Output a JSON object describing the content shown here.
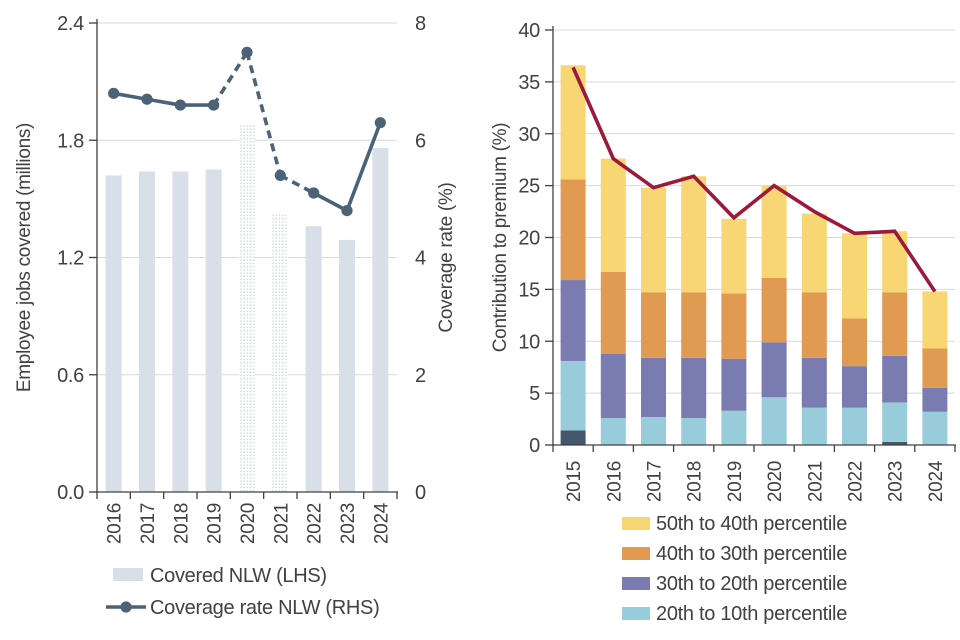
{
  "page": {
    "background": "#ffffff",
    "text_color": "#414042",
    "grid_color": "#d9d9d9",
    "axis_color": "#414042"
  },
  "chart_data": [
    {
      "id": "left-chart",
      "type": "bar",
      "categories": [
        "2016",
        "2017",
        "2018",
        "2019",
        "2020",
        "2021",
        "2022",
        "2023",
        "2024"
      ],
      "ylabel_left": "Employee jobs covered (millions)",
      "ylabel_right": "Coverage rate (%)",
      "ylim_left": [
        0,
        2.4
      ],
      "yticks_left": [
        "0.0",
        "0.6",
        "1.2",
        "1.8",
        "2.4"
      ],
      "ylim_right": [
        0,
        8
      ],
      "yticks_right": [
        "0",
        "2",
        "4",
        "6",
        "8"
      ],
      "grid": true,
      "bar_series": {
        "name": "Covered NLW (LHS)",
        "axis": "left",
        "color": "#d9dfe8",
        "values": [
          1.62,
          1.64,
          1.64,
          1.65,
          1.88,
          1.42,
          1.36,
          1.29,
          1.76
        ],
        "dotted_pattern_years": [
          "2020",
          "2021"
        ]
      },
      "line_series": {
        "name": "Coverage rate NLW (RHS)",
        "axis": "right",
        "color": "#4b6277",
        "values": [
          6.8,
          6.7,
          6.6,
          6.6,
          7.5,
          5.4,
          5.1,
          4.8,
          6.3
        ],
        "marker": "circle",
        "dashed_between_years": [
          [
            "2019",
            "2020"
          ],
          [
            "2020",
            "2021"
          ],
          [
            "2021",
            "2022"
          ]
        ]
      },
      "legend": [
        {
          "label": "Covered NLW (LHS)",
          "marker": "bar",
          "color": "#d9dfe8"
        },
        {
          "label": "Coverage rate NLW (RHS)",
          "marker": "line",
          "color": "#4b6277"
        }
      ],
      "legend_position": "bottom"
    },
    {
      "id": "right-chart",
      "type": "stacked-bar",
      "categories": [
        "2015",
        "2016",
        "2017",
        "2018",
        "2019",
        "2020",
        "2021",
        "2022",
        "2023",
        "2024"
      ],
      "ylabel": "Contribution to premium (%)",
      "ylim": [
        0,
        40
      ],
      "yticks": [
        "0",
        "5",
        "10",
        "15",
        "20",
        "25",
        "30",
        "35",
        "40"
      ],
      "grid": true,
      "series": [
        {
          "color": "#44576b",
          "in_legend": false,
          "values": [
            1.4,
            0,
            0,
            0,
            0,
            0,
            0,
            0,
            0.3,
            0
          ]
        },
        {
          "name": "20th to 10th percentile",
          "color": "#98ccda",
          "in_legend": true,
          "values": [
            6.7,
            2.6,
            2.7,
            2.6,
            3.3,
            4.6,
            3.6,
            3.6,
            3.8,
            3.2
          ]
        },
        {
          "name": "30th to 20th percentile",
          "color": "#7a7cb1",
          "in_legend": true,
          "values": [
            7.8,
            6.2,
            5.7,
            5.8,
            5.0,
            5.3,
            4.8,
            4.0,
            4.5,
            2.3
          ]
        },
        {
          "name": "40th to 30th percentile",
          "color": "#e09a52",
          "in_legend": true,
          "values": [
            9.7,
            7.9,
            6.3,
            6.3,
            6.3,
            6.2,
            6.3,
            4.6,
            6.1,
            3.8
          ]
        },
        {
          "name": "50th to 40th percentile",
          "color": "#f8d674",
          "in_legend": true,
          "values": [
            11.0,
            10.9,
            10.1,
            11.2,
            7.2,
            8.9,
            7.6,
            8.2,
            5.9,
            5.5
          ]
        }
      ],
      "line_series": {
        "color": "#9d1939",
        "values": [
          36.4,
          27.6,
          24.8,
          25.9,
          21.9,
          25.0,
          22.5,
          20.4,
          20.6,
          14.8
        ]
      },
      "legend": [
        {
          "label": "50th to 40th percentile",
          "color": "#f8d674"
        },
        {
          "label": "40th to 30th percentile",
          "color": "#e09a52"
        },
        {
          "label": "30th to 20th percentile",
          "color": "#7a7cb1"
        },
        {
          "label": "20th to 10th percentile",
          "color": "#98ccda"
        }
      ],
      "legend_position": "bottom"
    }
  ]
}
